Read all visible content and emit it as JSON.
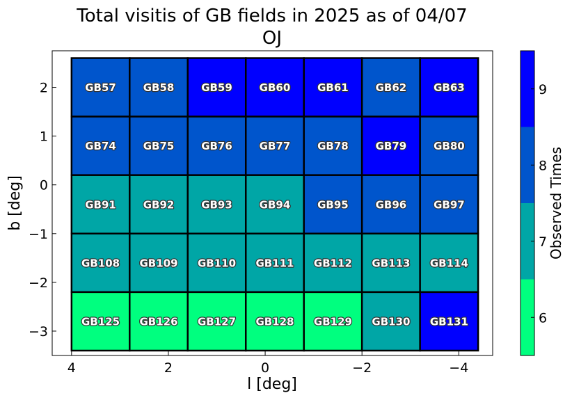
{
  "chart_data": {
    "type": "heatmap",
    "title": "Total visitis of GB fields in 2025 as of 04/07",
    "subtitle": "OJ",
    "xlabel": "l [deg]",
    "ylabel": "b [deg]",
    "xlim": [
      4.4,
      -4.7
    ],
    "ylim": [
      -3.5,
      2.75
    ],
    "xticks": [
      4,
      2,
      0,
      -2,
      -4
    ],
    "xtick_labels": [
      "4",
      "2",
      "0",
      "−2",
      "−4"
    ],
    "yticks": [
      2,
      1,
      0,
      -1,
      -2,
      -3
    ],
    "ytick_labels": [
      "2",
      "1",
      "0",
      "−1",
      "−2",
      "−3"
    ],
    "grid": false,
    "colorbar": {
      "label": "Observed Times",
      "ticks": [
        6,
        7,
        8,
        9
      ],
      "tick_labels": [
        "6",
        "7",
        "8",
        "9"
      ],
      "range": [
        5.5,
        9.5
      ],
      "colors": {
        "6": "#00ff7f",
        "7": "#00a6a6",
        "8": "#0055cc",
        "9": "#0000ff"
      }
    },
    "cell_size": {
      "dl": 1.2,
      "db": 1.2
    },
    "fields": [
      {
        "name": "GB57",
        "l": 3.4,
        "b": 2.0,
        "value": 8
      },
      {
        "name": "GB58",
        "l": 2.2,
        "b": 2.0,
        "value": 8
      },
      {
        "name": "GB59",
        "l": 1.0,
        "b": 2.0,
        "value": 9
      },
      {
        "name": "GB60",
        "l": -0.2,
        "b": 2.0,
        "value": 9
      },
      {
        "name": "GB61",
        "l": -1.4,
        "b": 2.0,
        "value": 9
      },
      {
        "name": "GB62",
        "l": -2.6,
        "b": 2.0,
        "value": 8
      },
      {
        "name": "GB63",
        "l": -3.8,
        "b": 2.0,
        "value": 9
      },
      {
        "name": "GB74",
        "l": 3.4,
        "b": 0.8,
        "value": 8
      },
      {
        "name": "GB75",
        "l": 2.2,
        "b": 0.8,
        "value": 8
      },
      {
        "name": "GB76",
        "l": 1.0,
        "b": 0.8,
        "value": 8
      },
      {
        "name": "GB77",
        "l": -0.2,
        "b": 0.8,
        "value": 8
      },
      {
        "name": "GB78",
        "l": -1.4,
        "b": 0.8,
        "value": 8
      },
      {
        "name": "GB79",
        "l": -2.6,
        "b": 0.8,
        "value": 9
      },
      {
        "name": "GB80",
        "l": -3.8,
        "b": 0.8,
        "value": 8
      },
      {
        "name": "GB91",
        "l": 3.4,
        "b": -0.4,
        "value": 7
      },
      {
        "name": "GB92",
        "l": 2.2,
        "b": -0.4,
        "value": 7
      },
      {
        "name": "GB93",
        "l": 1.0,
        "b": -0.4,
        "value": 7
      },
      {
        "name": "GB94",
        "l": -0.2,
        "b": -0.4,
        "value": 7
      },
      {
        "name": "GB95",
        "l": -1.4,
        "b": -0.4,
        "value": 8
      },
      {
        "name": "GB96",
        "l": -2.6,
        "b": -0.4,
        "value": 8
      },
      {
        "name": "GB97",
        "l": -3.8,
        "b": -0.4,
        "value": 8
      },
      {
        "name": "GB108",
        "l": 3.4,
        "b": -1.6,
        "value": 7
      },
      {
        "name": "GB109",
        "l": 2.2,
        "b": -1.6,
        "value": 7
      },
      {
        "name": "GB110",
        "l": 1.0,
        "b": -1.6,
        "value": 7
      },
      {
        "name": "GB111",
        "l": -0.2,
        "b": -1.6,
        "value": 7
      },
      {
        "name": "GB112",
        "l": -1.4,
        "b": -1.6,
        "value": 7
      },
      {
        "name": "GB113",
        "l": -2.6,
        "b": -1.6,
        "value": 7
      },
      {
        "name": "GB114",
        "l": -3.8,
        "b": -1.6,
        "value": 7
      },
      {
        "name": "GB125",
        "l": 3.4,
        "b": -2.8,
        "value": 6
      },
      {
        "name": "GB126",
        "l": 2.2,
        "b": -2.8,
        "value": 6
      },
      {
        "name": "GB127",
        "l": 1.0,
        "b": -2.8,
        "value": 6
      },
      {
        "name": "GB128",
        "l": -0.2,
        "b": -2.8,
        "value": 6
      },
      {
        "name": "GB129",
        "l": -1.4,
        "b": -2.8,
        "value": 6
      },
      {
        "name": "GB130",
        "l": -2.6,
        "b": -2.8,
        "value": 7
      },
      {
        "name": "GB131",
        "l": -3.8,
        "b": -2.8,
        "value": 9
      }
    ]
  }
}
